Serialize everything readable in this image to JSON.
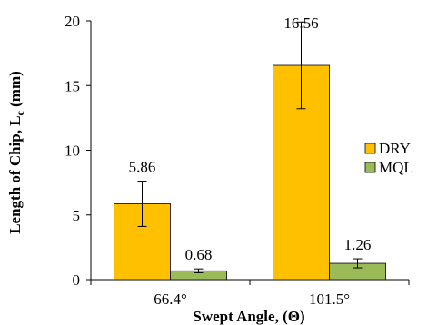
{
  "chart_data": {
    "type": "bar",
    "categories": [
      "66.4°",
      "101.5°"
    ],
    "series": [
      {
        "name": "DRY",
        "values": [
          5.86,
          16.56
        ],
        "error": [
          1.75,
          3.35
        ],
        "color": "#FFC000",
        "labels": [
          "5.86",
          "16.56"
        ]
      },
      {
        "name": "MQL",
        "values": [
          0.68,
          1.26
        ],
        "error": [
          0.15,
          0.35
        ],
        "color": "#9BBB59",
        "labels": [
          "0.68",
          "1.26"
        ]
      }
    ],
    "xlabel": "Swept Angle, (Θ)",
    "ylabel_main": "Length of Chip, L",
    "ylabel_sub": "c",
    "ylabel_unit": " (mm)",
    "ylim": [
      0,
      20
    ],
    "yticks": [
      "0",
      "5",
      "10",
      "15",
      "20"
    ],
    "legend_position": "right",
    "grid": false
  }
}
